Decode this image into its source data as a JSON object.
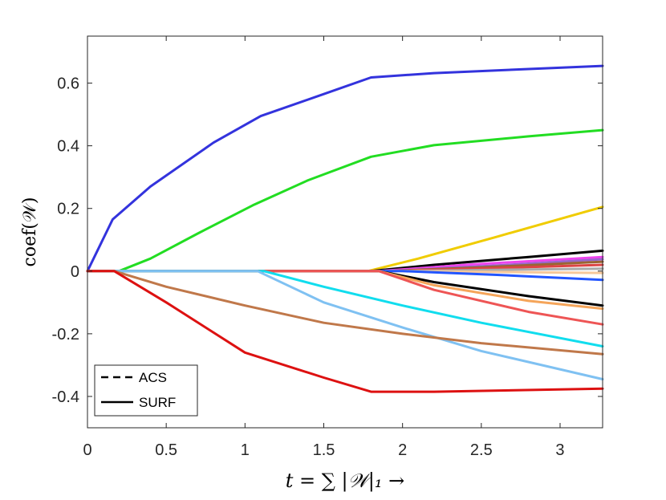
{
  "chart_data": {
    "type": "line",
    "title": "",
    "xlabel": "t = ∑ |𝒲|₁ →",
    "ylabel": "coef(𝒲)",
    "xlim": [
      0,
      3.27
    ],
    "ylim": [
      -0.5,
      0.75
    ],
    "grid": false,
    "legend_position": "bottom-left",
    "x_ticks": [
      {
        "value": 0,
        "label": "0"
      },
      {
        "value": 0.5,
        "label": "0.5"
      },
      {
        "value": 1,
        "label": "1"
      },
      {
        "value": 1.5,
        "label": "1.5"
      },
      {
        "value": 2,
        "label": "2"
      },
      {
        "value": 2.5,
        "label": "2.5"
      },
      {
        "value": 3,
        "label": "3"
      }
    ],
    "y_ticks": [
      {
        "value": -0.4,
        "label": "-0.4"
      },
      {
        "value": -0.2,
        "label": "-0.2"
      },
      {
        "value": 0,
        "label": "0"
      },
      {
        "value": 0.2,
        "label": "0.2"
      },
      {
        "value": 0.4,
        "label": "0.4"
      },
      {
        "value": 0.6,
        "label": "0.6"
      }
    ],
    "legend": [
      {
        "label": "ACS",
        "style": "dashed",
        "color": "#000000"
      },
      {
        "label": "SURF",
        "style": "solid",
        "color": "#000000"
      }
    ],
    "series": [
      {
        "color": "#3333dd",
        "points": [
          [
            0,
            0
          ],
          [
            0.16,
            0.165
          ],
          [
            0.4,
            0.27
          ],
          [
            0.8,
            0.41
          ],
          [
            1.1,
            0.495
          ],
          [
            1.5,
            0.565
          ],
          [
            1.8,
            0.618
          ],
          [
            2.2,
            0.632
          ],
          [
            2.8,
            0.645
          ],
          [
            3.27,
            0.655
          ]
        ]
      },
      {
        "color": "#22dd22",
        "points": [
          [
            0,
            0
          ],
          [
            0.2,
            0
          ],
          [
            0.4,
            0.04
          ],
          [
            0.7,
            0.12
          ],
          [
            1.05,
            0.21
          ],
          [
            1.4,
            0.29
          ],
          [
            1.8,
            0.365
          ],
          [
            2.2,
            0.402
          ],
          [
            2.8,
            0.43
          ],
          [
            3.27,
            0.45
          ]
        ]
      },
      {
        "color": "#f0cc00",
        "points": [
          [
            0,
            0
          ],
          [
            1.78,
            0
          ],
          [
            2.1,
            0.04
          ],
          [
            2.6,
            0.11
          ],
          [
            3.27,
            0.205
          ]
        ]
      },
      {
        "color": "#000000",
        "points": [
          [
            0,
            0
          ],
          [
            1.8,
            0
          ],
          [
            2.2,
            0.02
          ],
          [
            2.8,
            0.045
          ],
          [
            3.27,
            0.065
          ]
        ]
      },
      {
        "color": "#ee44ee",
        "points": [
          [
            0,
            0
          ],
          [
            1.85,
            0
          ],
          [
            2.4,
            0.02
          ],
          [
            3.27,
            0.045
          ]
        ]
      },
      {
        "color": "#9966cc",
        "points": [
          [
            0,
            0
          ],
          [
            1.9,
            0
          ],
          [
            2.6,
            0.018
          ],
          [
            3.27,
            0.038
          ]
        ]
      },
      {
        "color": "#996633",
        "points": [
          [
            0,
            0
          ],
          [
            1.9,
            0
          ],
          [
            2.5,
            0.012
          ],
          [
            3.27,
            0.03
          ]
        ]
      },
      {
        "color": "#dd4444",
        "points": [
          [
            0,
            0
          ],
          [
            1.9,
            0
          ],
          [
            2.6,
            0.01
          ],
          [
            3.27,
            0.02
          ]
        ]
      },
      {
        "color": "#aaaaaa",
        "points": [
          [
            0,
            0
          ],
          [
            1.95,
            0
          ],
          [
            2.6,
            0.004
          ],
          [
            3.27,
            0.008
          ]
        ]
      },
      {
        "color": "#f7c89a",
        "points": [
          [
            0,
            0
          ],
          [
            2.0,
            0
          ],
          [
            3.27,
            -0.006
          ]
        ]
      },
      {
        "color": "#2255ff",
        "points": [
          [
            0,
            0
          ],
          [
            2.0,
            0
          ],
          [
            2.6,
            -0.012
          ],
          [
            3.27,
            -0.028
          ]
        ]
      },
      {
        "color": "#000000",
        "points": [
          [
            0,
            0
          ],
          [
            1.85,
            0
          ],
          [
            2.2,
            -0.035
          ],
          [
            2.8,
            -0.08
          ],
          [
            3.27,
            -0.11
          ]
        ]
      },
      {
        "color": "#f5a55a",
        "points": [
          [
            0,
            0
          ],
          [
            1.85,
            0
          ],
          [
            2.2,
            -0.045
          ],
          [
            2.8,
            -0.095
          ],
          [
            3.27,
            -0.12
          ]
        ]
      },
      {
        "color": "#ee5555",
        "points": [
          [
            0,
            0
          ],
          [
            1.85,
            0
          ],
          [
            2.2,
            -0.06
          ],
          [
            2.8,
            -0.13
          ],
          [
            3.27,
            -0.17
          ]
        ]
      },
      {
        "color": "#11ddee",
        "points": [
          [
            0,
            0
          ],
          [
            1.12,
            0
          ],
          [
            1.5,
            -0.05
          ],
          [
            2.0,
            -0.11
          ],
          [
            2.5,
            -0.165
          ],
          [
            3.27,
            -0.24
          ]
        ]
      },
      {
        "color": "#7fc1f2",
        "points": [
          [
            0,
            0
          ],
          [
            1.08,
            0
          ],
          [
            1.5,
            -0.1
          ],
          [
            2.0,
            -0.18
          ],
          [
            2.5,
            -0.255
          ],
          [
            3.27,
            -0.345
          ]
        ]
      },
      {
        "color": "#c0784a",
        "points": [
          [
            0,
            0
          ],
          [
            0.17,
            0
          ],
          [
            0.5,
            -0.05
          ],
          [
            1.0,
            -0.11
          ],
          [
            1.5,
            -0.165
          ],
          [
            2.0,
            -0.2
          ],
          [
            2.5,
            -0.23
          ],
          [
            3.27,
            -0.265
          ]
        ]
      },
      {
        "color": "#dd1111",
        "points": [
          [
            0,
            0
          ],
          [
            0.17,
            0
          ],
          [
            0.5,
            -0.1
          ],
          [
            1.0,
            -0.26
          ],
          [
            1.5,
            -0.34
          ],
          [
            1.8,
            -0.385
          ],
          [
            2.2,
            -0.385
          ],
          [
            3.27,
            -0.375
          ]
        ]
      }
    ]
  }
}
